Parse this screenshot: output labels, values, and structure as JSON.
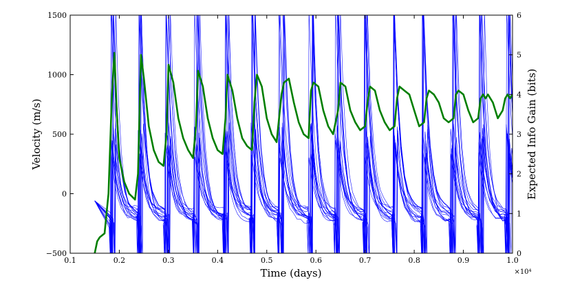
{
  "chart_data": {
    "type": "line",
    "xlabel": "Time (days)",
    "ylabel": "Velocity (m/s)",
    "y2label": "Expected Info Gain (bits)",
    "x_multiplier_label": "×10⁴",
    "xlim": [
      0.1,
      1.0
    ],
    "ylim": [
      -500,
      1500
    ],
    "y2lim": [
      0,
      6
    ],
    "xticks": [
      "0.1",
      "0.2",
      "0.3",
      "0.4",
      "0.5",
      "0.6",
      "0.7",
      "0.8",
      "0.9",
      "1.0"
    ],
    "yticks": [
      "−500",
      "0",
      "500",
      "1000",
      "1500"
    ],
    "y2ticks": [
      "0",
      "1",
      "2",
      "3",
      "4",
      "5",
      "6"
    ],
    "colors": {
      "velocity": "#0000ff",
      "info_gain": "#007f00",
      "axes": "#000000"
    },
    "series": [
      {
        "name": "Velocity samples",
        "axis": "left",
        "style": "thin blue lines, many overlapping samples",
        "start_x": 0.15,
        "start_value": -60,
        "peak_x": [
          0.188,
          0.243,
          0.299,
          0.358,
          0.418,
          0.473,
          0.53,
          0.59,
          0.645,
          0.705,
          0.763,
          0.822,
          0.88,
          0.937,
          0.993
        ],
        "peak_value": 1500,
        "trough_value": -500,
        "post_peak_band": [
          300,
          600
        ],
        "baseline_band": [
          -250,
          -120
        ]
      },
      {
        "name": "Expected info gain",
        "axis": "right",
        "style": "thick green line",
        "points": [
          [
            0.15,
            0.0
          ],
          [
            0.155,
            0.3
          ],
          [
            0.16,
            0.4
          ],
          [
            0.17,
            0.5
          ],
          [
            0.178,
            1.5
          ],
          [
            0.185,
            4.0
          ],
          [
            0.19,
            5.05
          ],
          [
            0.195,
            3.5
          ],
          [
            0.2,
            2.4
          ],
          [
            0.21,
            1.8
          ],
          [
            0.22,
            1.5
          ],
          [
            0.232,
            1.35
          ],
          [
            0.238,
            2.0
          ],
          [
            0.244,
            5.0
          ],
          [
            0.25,
            4.4
          ],
          [
            0.26,
            3.2
          ],
          [
            0.27,
            2.6
          ],
          [
            0.28,
            2.3
          ],
          [
            0.29,
            2.2
          ],
          [
            0.296,
            3.0
          ],
          [
            0.3,
            4.75
          ],
          [
            0.31,
            4.3
          ],
          [
            0.32,
            3.4
          ],
          [
            0.33,
            2.9
          ],
          [
            0.34,
            2.6
          ],
          [
            0.35,
            2.4
          ],
          [
            0.356,
            3.2
          ],
          [
            0.36,
            4.6
          ],
          [
            0.37,
            4.2
          ],
          [
            0.38,
            3.4
          ],
          [
            0.39,
            2.9
          ],
          [
            0.4,
            2.6
          ],
          [
            0.41,
            2.5
          ],
          [
            0.416,
            3.4
          ],
          [
            0.42,
            4.5
          ],
          [
            0.43,
            4.1
          ],
          [
            0.44,
            3.4
          ],
          [
            0.45,
            2.9
          ],
          [
            0.46,
            2.7
          ],
          [
            0.47,
            2.6
          ],
          [
            0.475,
            3.8
          ],
          [
            0.48,
            4.5
          ],
          [
            0.49,
            4.2
          ],
          [
            0.5,
            3.4
          ],
          [
            0.51,
            3.0
          ],
          [
            0.52,
            2.8
          ],
          [
            0.53,
            4.0
          ],
          [
            0.535,
            4.3
          ],
          [
            0.545,
            4.4
          ],
          [
            0.555,
            3.8
          ],
          [
            0.565,
            3.3
          ],
          [
            0.575,
            3.0
          ],
          [
            0.585,
            2.9
          ],
          [
            0.59,
            4.1
          ],
          [
            0.595,
            4.3
          ],
          [
            0.605,
            4.2
          ],
          [
            0.615,
            3.6
          ],
          [
            0.625,
            3.2
          ],
          [
            0.635,
            3.0
          ],
          [
            0.645,
            3.6
          ],
          [
            0.65,
            4.3
          ],
          [
            0.66,
            4.2
          ],
          [
            0.67,
            3.6
          ],
          [
            0.68,
            3.3
          ],
          [
            0.69,
            3.1
          ],
          [
            0.7,
            3.2
          ],
          [
            0.705,
            3.8
          ],
          [
            0.71,
            4.2
          ],
          [
            0.72,
            4.1
          ],
          [
            0.73,
            3.6
          ],
          [
            0.74,
            3.3
          ],
          [
            0.75,
            3.1
          ],
          [
            0.76,
            3.2
          ],
          [
            0.765,
            3.9
          ],
          [
            0.77,
            4.2
          ],
          [
            0.78,
            4.1
          ],
          [
            0.79,
            4.0
          ],
          [
            0.8,
            3.6
          ],
          [
            0.81,
            3.2
          ],
          [
            0.82,
            3.3
          ],
          [
            0.825,
            3.9
          ],
          [
            0.83,
            4.1
          ],
          [
            0.84,
            4.0
          ],
          [
            0.85,
            3.8
          ],
          [
            0.86,
            3.4
          ],
          [
            0.87,
            3.3
          ],
          [
            0.88,
            3.4
          ],
          [
            0.885,
            4.0
          ],
          [
            0.89,
            4.1
          ],
          [
            0.9,
            4.0
          ],
          [
            0.91,
            3.6
          ],
          [
            0.92,
            3.3
          ],
          [
            0.93,
            3.4
          ],
          [
            0.935,
            3.9
          ],
          [
            0.94,
            4.0
          ],
          [
            0.945,
            3.9
          ],
          [
            0.95,
            4.0
          ],
          [
            0.96,
            3.8
          ],
          [
            0.97,
            3.4
          ],
          [
            0.98,
            3.6
          ],
          [
            0.985,
            3.9
          ],
          [
            0.99,
            4.0
          ],
          [
            0.995,
            3.9
          ],
          [
            1.0,
            4.0
          ]
        ]
      }
    ]
  }
}
